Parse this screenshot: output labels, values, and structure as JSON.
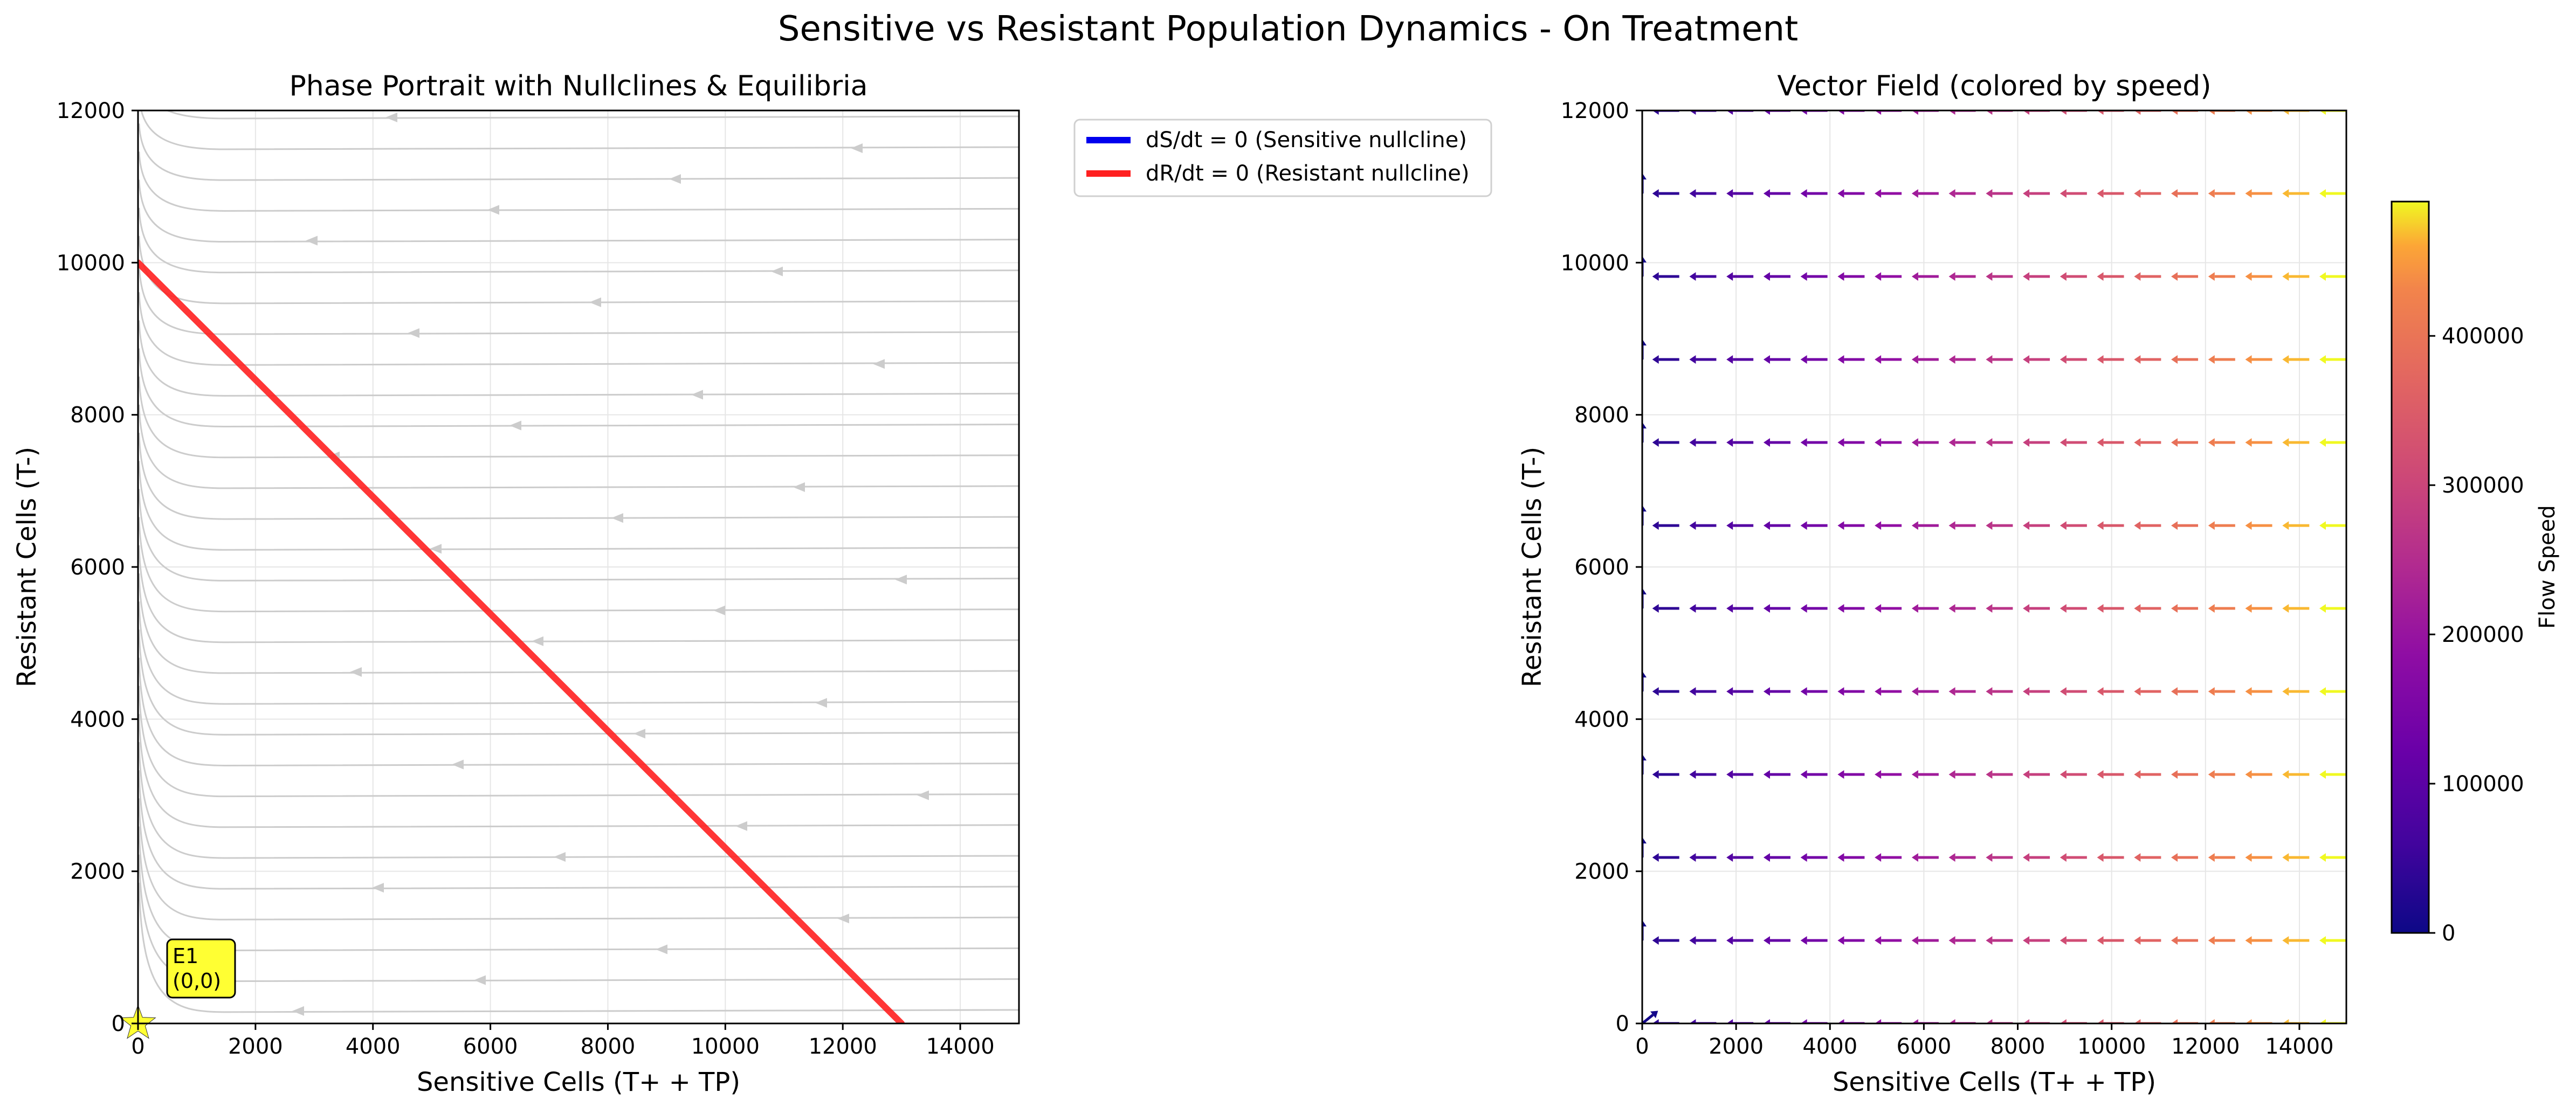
{
  "figure": {
    "title": "Sensitive vs Resistant Population Dynamics - On Treatment"
  },
  "chart_data": [
    {
      "type": "line",
      "title": "Phase Portrait with Nullclines & Equilibria",
      "xlabel": "Sensitive Cells (T+ + TP)",
      "ylabel": "Resistant Cells (T-)",
      "xlim": [
        0,
        15000
      ],
      "ylim": [
        0,
        12000
      ],
      "xticks": [
        "0",
        "2000",
        "4000",
        "6000",
        "8000",
        "10000",
        "12000",
        "14000"
      ],
      "yticks": [
        "0",
        "2000",
        "4000",
        "6000",
        "8000",
        "10000",
        "12000"
      ],
      "grid": true,
      "legend": {
        "placement": "outside-right",
        "entries": [
          {
            "label": "dS/dt = 0 (Sensitive nullcline)",
            "color": "#0000ee"
          },
          {
            "label": "dR/dt = 0 (Resistant nullcline)",
            "color": "#ff2020"
          }
        ]
      },
      "series": [
        {
          "name": "dR/dt = 0 (Resistant nullcline)",
          "color": "#ff2020",
          "x": [
            0,
            13000
          ],
          "y": [
            10000,
            0
          ]
        }
      ],
      "streamlines": {
        "color": "#cccccc",
        "direction": "leftward",
        "note_levels": []
      },
      "equilibria": [
        {
          "label": "E1\n(0,0)",
          "label_line1": "E1",
          "label_line2": "(0,0)",
          "x": 0,
          "y": 0,
          "color": "#ffff33"
        }
      ]
    },
    {
      "type": "scatter",
      "subtype": "quiver",
      "title": "Vector Field (colored by speed)",
      "xlabel": "Sensitive Cells (T+ + TP)",
      "ylabel": "Resistant Cells (T-)",
      "xlim": [
        0,
        15000
      ],
      "ylim": [
        0,
        12000
      ],
      "xticks": [
        "0",
        "2000",
        "4000",
        "6000",
        "8000",
        "10000",
        "12000",
        "14000"
      ],
      "yticks": [
        "0",
        "2000",
        "4000",
        "6000",
        "8000",
        "10000",
        "12000"
      ],
      "grid": true,
      "colormap": "plasma",
      "colorbar": {
        "label": "Flow Speed",
        "range": [
          0,
          490000
        ],
        "ticks": [
          "0",
          "100000",
          "200000",
          "300000",
          "400000"
        ],
        "tick_values": [
          0,
          100000,
          200000,
          300000,
          400000
        ]
      },
      "grid_x": [
        0,
        789,
        1579,
        2368,
        3158,
        3947,
        4737,
        5526,
        6316,
        7105,
        7895,
        8684,
        9474,
        10263,
        11053,
        11842,
        12632,
        13421,
        14211,
        15000
      ],
      "grid_y": [
        0,
        1091,
        2182,
        3273,
        4364,
        5455,
        6545,
        7636,
        8727,
        9818,
        10909,
        12000
      ],
      "speed_formula": "approximately proportional to S (max ~490000 at S = 15000)"
    }
  ]
}
